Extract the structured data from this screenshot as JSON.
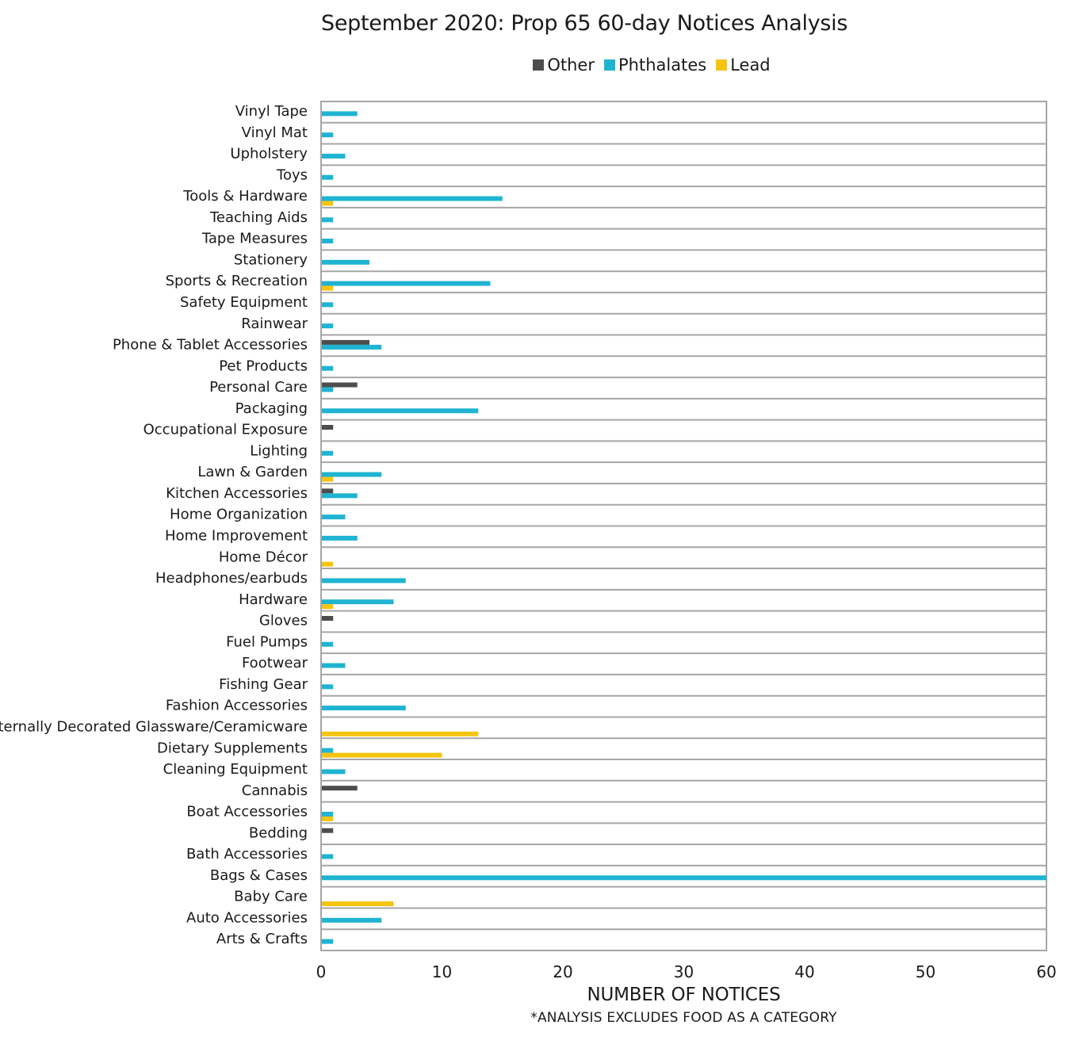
{
  "chart_data": {
    "type": "bar",
    "orientation": "horizontal",
    "title": "September 2020: Prop 65 60-day Notices Analysis",
    "xlabel": "NUMBER OF NOTICES",
    "note": "*ANALYSIS EXCLUDES FOOD AS A CATEGORY",
    "xlim": [
      0,
      60
    ],
    "xticks": [
      0,
      10,
      20,
      30,
      40,
      50,
      60
    ],
    "legend_position": "top",
    "categories": [
      "Vinyl Tape",
      "Vinyl Mat",
      "Upholstery",
      "Toys",
      "Tools & Hardware",
      "Teaching Aids",
      "Tape Measures",
      "Stationery",
      "Sports & Recreation",
      "Safety Equipment",
      "Rainwear",
      "Phone & Tablet Accessories",
      "Pet Products",
      "Personal Care",
      "Packaging",
      "Occupational Exposure",
      "Lighting",
      "Lawn & Garden",
      "Kitchen Accessories",
      "Home Organization",
      "Home Improvement",
      "Home Décor",
      "Headphones/earbuds",
      "Hardware",
      "Gloves",
      "Fuel Pumps",
      "Footwear",
      "Fishing Gear",
      "Fashion Accessories",
      "Externally Decorated Glassware/Ceramicware",
      "Dietary Supplements",
      "Cleaning Equipment",
      "Cannabis",
      "Boat Accessories",
      "Bedding",
      "Bath Accessories",
      "Bags & Cases",
      "Baby Care",
      "Auto Accessories",
      "Arts & Crafts"
    ],
    "series": [
      {
        "name": "Other",
        "color": "#4d4d4f",
        "values": [
          0,
          0,
          0,
          0,
          0,
          0,
          0,
          0,
          0,
          0,
          0,
          4,
          0,
          3,
          0,
          1,
          0,
          0,
          1,
          0,
          0,
          0,
          0,
          0,
          1,
          0,
          0,
          0,
          0,
          0,
          0,
          0,
          3,
          0,
          1,
          0,
          0,
          0,
          0,
          0
        ]
      },
      {
        "name": "Phthalates",
        "color": "#1fb4d2",
        "values": [
          3,
          1,
          2,
          1,
          15,
          1,
          1,
          4,
          14,
          1,
          1,
          5,
          1,
          1,
          13,
          0,
          1,
          5,
          3,
          2,
          3,
          0,
          7,
          6,
          0,
          1,
          2,
          1,
          7,
          0,
          1,
          2,
          0,
          1,
          0,
          1,
          60,
          0,
          5,
          1
        ]
      },
      {
        "name": "Lead",
        "color": "#f5c40f",
        "values": [
          0,
          0,
          0,
          0,
          1,
          0,
          0,
          0,
          1,
          0,
          0,
          0,
          0,
          0,
          0,
          0,
          0,
          1,
          0,
          0,
          0,
          1,
          0,
          1,
          0,
          0,
          0,
          0,
          0,
          13,
          10,
          0,
          0,
          1,
          0,
          0,
          0,
          6,
          0,
          0
        ]
      }
    ]
  }
}
